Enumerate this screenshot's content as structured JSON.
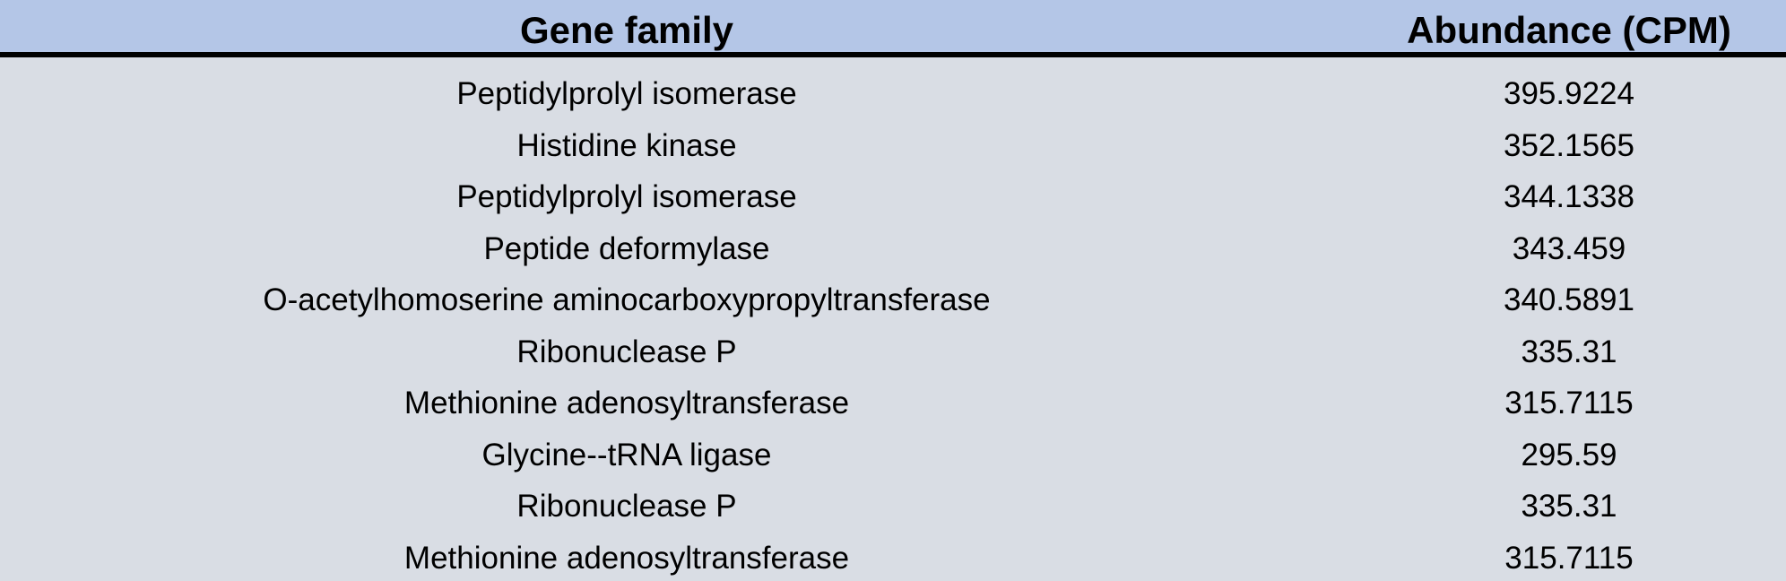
{
  "table": {
    "headers": {
      "gene_family": "Gene family",
      "abundance": "Abundance (CPM)"
    },
    "rows": [
      {
        "gene_family": "Peptidylprolyl isomerase",
        "abundance": "395.9224"
      },
      {
        "gene_family": "Histidine kinase",
        "abundance": "352.1565"
      },
      {
        "gene_family": "Peptidylprolyl isomerase",
        "abundance": "344.1338"
      },
      {
        "gene_family": "Peptide deformylase",
        "abundance": "343.459"
      },
      {
        "gene_family": "O-acetylhomoserine aminocarboxypropyltransferase",
        "abundance": "340.5891"
      },
      {
        "gene_family": "Ribonuclease P",
        "abundance": "335.31"
      },
      {
        "gene_family": "Methionine adenosyltransferase",
        "abundance": "315.7115"
      },
      {
        "gene_family": "Glycine--tRNA ligase",
        "abundance": "295.59"
      },
      {
        "gene_family": "Ribonuclease P",
        "abundance": "335.31"
      },
      {
        "gene_family": "Methionine adenosyltransferase",
        "abundance": "315.7115"
      }
    ]
  },
  "colors": {
    "header_background": "#b4c6e7",
    "body_background": "#d9dde4",
    "header_rule": "#000000"
  }
}
